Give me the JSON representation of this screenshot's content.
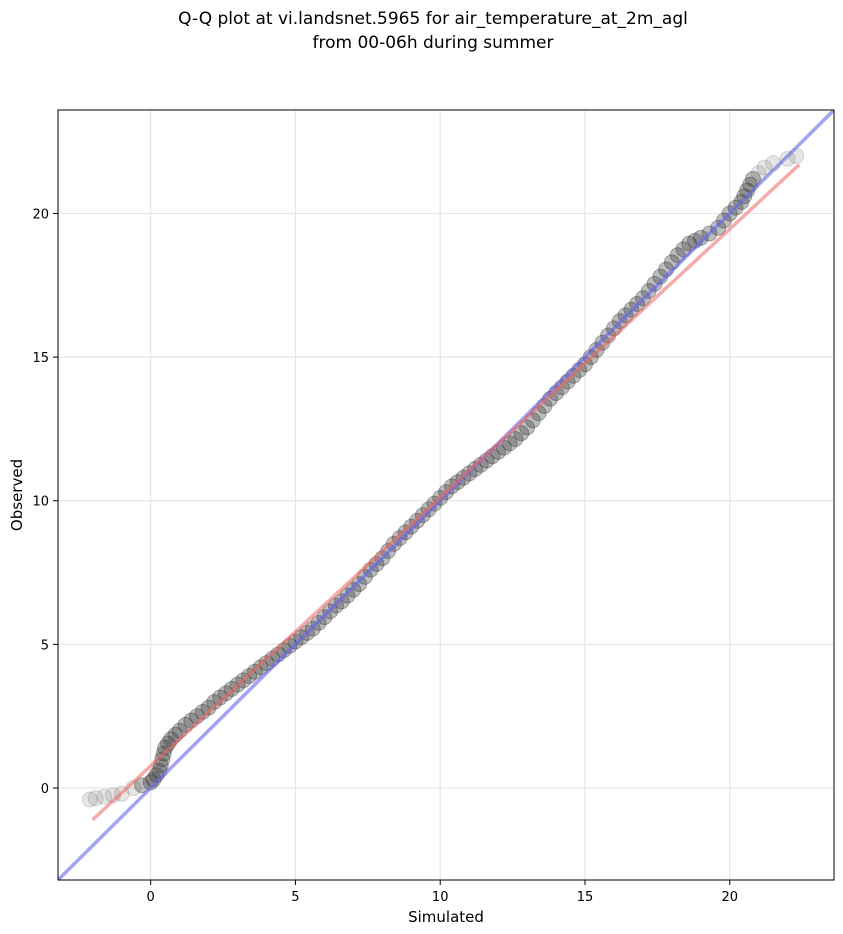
{
  "chart_data": {
    "type": "scatter",
    "title_line1": "Q-Q plot at vi.landsnet.5965 for air_temperature_at_2m_agl",
    "title_line2": "from 00-06h during summer",
    "xlabel": "Simulated",
    "ylabel": "Observed",
    "xlim": [
      -3.2,
      23.6
    ],
    "ylim": [
      -3.2,
      23.6
    ],
    "xticks": [
      0,
      5,
      10,
      15,
      20
    ],
    "yticks": [
      0,
      5,
      10,
      15,
      20
    ],
    "grid": true,
    "colors": {
      "points": "#333333",
      "identity_line": "#6666ee",
      "fit_line": "#ee6666",
      "grid": "#e6e6e6"
    },
    "points": {
      "x": [
        -2.1,
        -1.9,
        -1.6,
        -1.3,
        -1.0,
        -0.6,
        -0.3,
        0.0,
        0.1,
        0.2,
        0.3,
        0.35,
        0.4,
        0.45,
        0.5,
        0.6,
        0.7,
        0.85,
        1.0,
        1.2,
        1.4,
        1.6,
        1.8,
        2.0,
        2.2,
        2.4,
        2.6,
        2.8,
        3.0,
        3.2,
        3.4,
        3.6,
        3.8,
        4.0,
        4.2,
        4.4,
        4.6,
        4.8,
        5.0,
        5.2,
        5.4,
        5.6,
        5.8,
        6.0,
        6.2,
        6.4,
        6.6,
        6.8,
        7.0,
        7.2,
        7.4,
        7.6,
        7.8,
        8.0,
        8.2,
        8.4,
        8.6,
        8.8,
        9.0,
        9.2,
        9.4,
        9.6,
        9.8,
        10.0,
        10.2,
        10.4,
        10.6,
        10.8,
        11.0,
        11.2,
        11.4,
        11.6,
        11.8,
        12.0,
        12.2,
        12.4,
        12.6,
        12.8,
        13.0,
        13.2,
        13.4,
        13.6,
        13.8,
        14.0,
        14.2,
        14.4,
        14.6,
        14.8,
        15.0,
        15.2,
        15.4,
        15.6,
        15.8,
        16.0,
        16.2,
        16.4,
        16.6,
        16.8,
        17.0,
        17.2,
        17.4,
        17.6,
        17.8,
        18.0,
        18.2,
        18.4,
        18.6,
        18.8,
        19.0,
        19.3,
        19.6,
        19.8,
        20.0,
        20.2,
        20.4,
        20.5,
        20.6,
        20.7,
        20.8,
        21.0,
        21.2,
        21.5,
        22.0,
        22.3
      ],
      "y": [
        -0.4,
        -0.35,
        -0.3,
        -0.25,
        -0.2,
        0.0,
        0.1,
        0.2,
        0.3,
        0.45,
        0.6,
        0.8,
        1.0,
        1.2,
        1.4,
        1.55,
        1.7,
        1.85,
        2.0,
        2.2,
        2.35,
        2.5,
        2.65,
        2.8,
        3.0,
        3.15,
        3.3,
        3.45,
        3.6,
        3.75,
        3.9,
        4.05,
        4.2,
        4.35,
        4.5,
        4.65,
        4.8,
        4.95,
        5.1,
        5.25,
        5.4,
        5.55,
        5.75,
        5.95,
        6.15,
        6.35,
        6.5,
        6.7,
        6.9,
        7.1,
        7.35,
        7.6,
        7.8,
        8.0,
        8.25,
        8.5,
        8.7,
        8.9,
        9.1,
        9.3,
        9.5,
        9.7,
        9.9,
        10.1,
        10.3,
        10.5,
        10.65,
        10.8,
        10.95,
        11.1,
        11.25,
        11.4,
        11.55,
        11.7,
        11.85,
        12.0,
        12.15,
        12.35,
        12.55,
        12.8,
        13.05,
        13.3,
        13.55,
        13.75,
        13.95,
        14.15,
        14.35,
        14.55,
        14.75,
        15.0,
        15.25,
        15.5,
        15.75,
        16.0,
        16.25,
        16.45,
        16.65,
        16.85,
        17.05,
        17.3,
        17.55,
        17.8,
        18.05,
        18.3,
        18.55,
        18.75,
        18.95,
        19.05,
        19.15,
        19.3,
        19.5,
        19.75,
        20.0,
        20.2,
        20.4,
        20.6,
        20.8,
        21.0,
        21.2,
        21.4,
        21.6,
        21.75,
        21.9,
        22.0
      ]
    },
    "identity_line": {
      "x": [
        -3.2,
        23.6
      ],
      "y": [
        -3.2,
        23.6
      ]
    },
    "fit_line": {
      "x": [
        -2.0,
        22.4
      ],
      "y": [
        -1.1,
        21.7
      ]
    }
  }
}
